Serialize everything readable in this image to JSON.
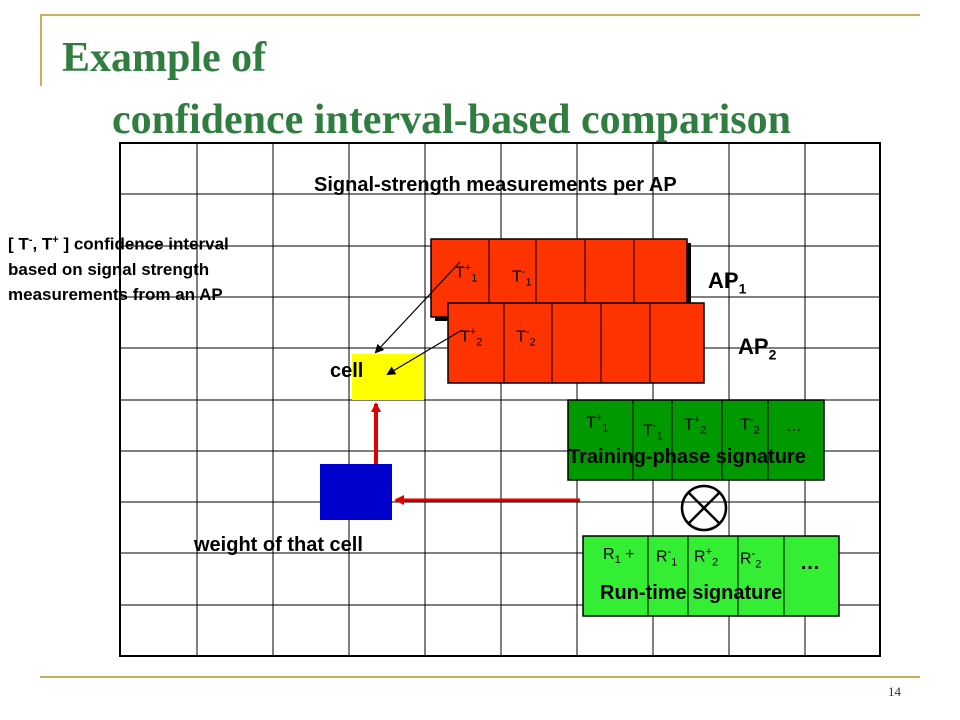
{
  "slide": {
    "title_line1": "Example of",
    "title_line2": "confidence interval-based comparison",
    "page_number": "14"
  },
  "diagram": {
    "heading": "Signal-strength measurements per AP",
    "note": {
      "line1_prefix": "[ T",
      "line1_sup1": "-",
      "line1_mid": ", T",
      "line1_sup2": "+",
      "line1_suffix": " ] confidence interval",
      "line2": "based on signal strength",
      "line3": "measurements from an AP"
    },
    "ap1": {
      "base": "AP",
      "sub": "1"
    },
    "ap2": {
      "base": "AP",
      "sub": "2"
    },
    "cell_label": "cell",
    "weight_label": "weight of that cell",
    "training_label": "Training-phase signature",
    "runtime_label": "Run-time signature",
    "ellipsis": "…",
    "labels": {
      "letter_t": "T",
      "letter_r": "R",
      "plus": "+",
      "minus": "-",
      "one": "1",
      "two": "2"
    },
    "colors": {
      "grid": "#000000",
      "ap_block": "#ff3300",
      "signature_block": "#009900",
      "runtime_block": "#33ee33",
      "cell": "#ffff00",
      "weight": "#0000cc",
      "arrow": "#dd0000"
    }
  }
}
